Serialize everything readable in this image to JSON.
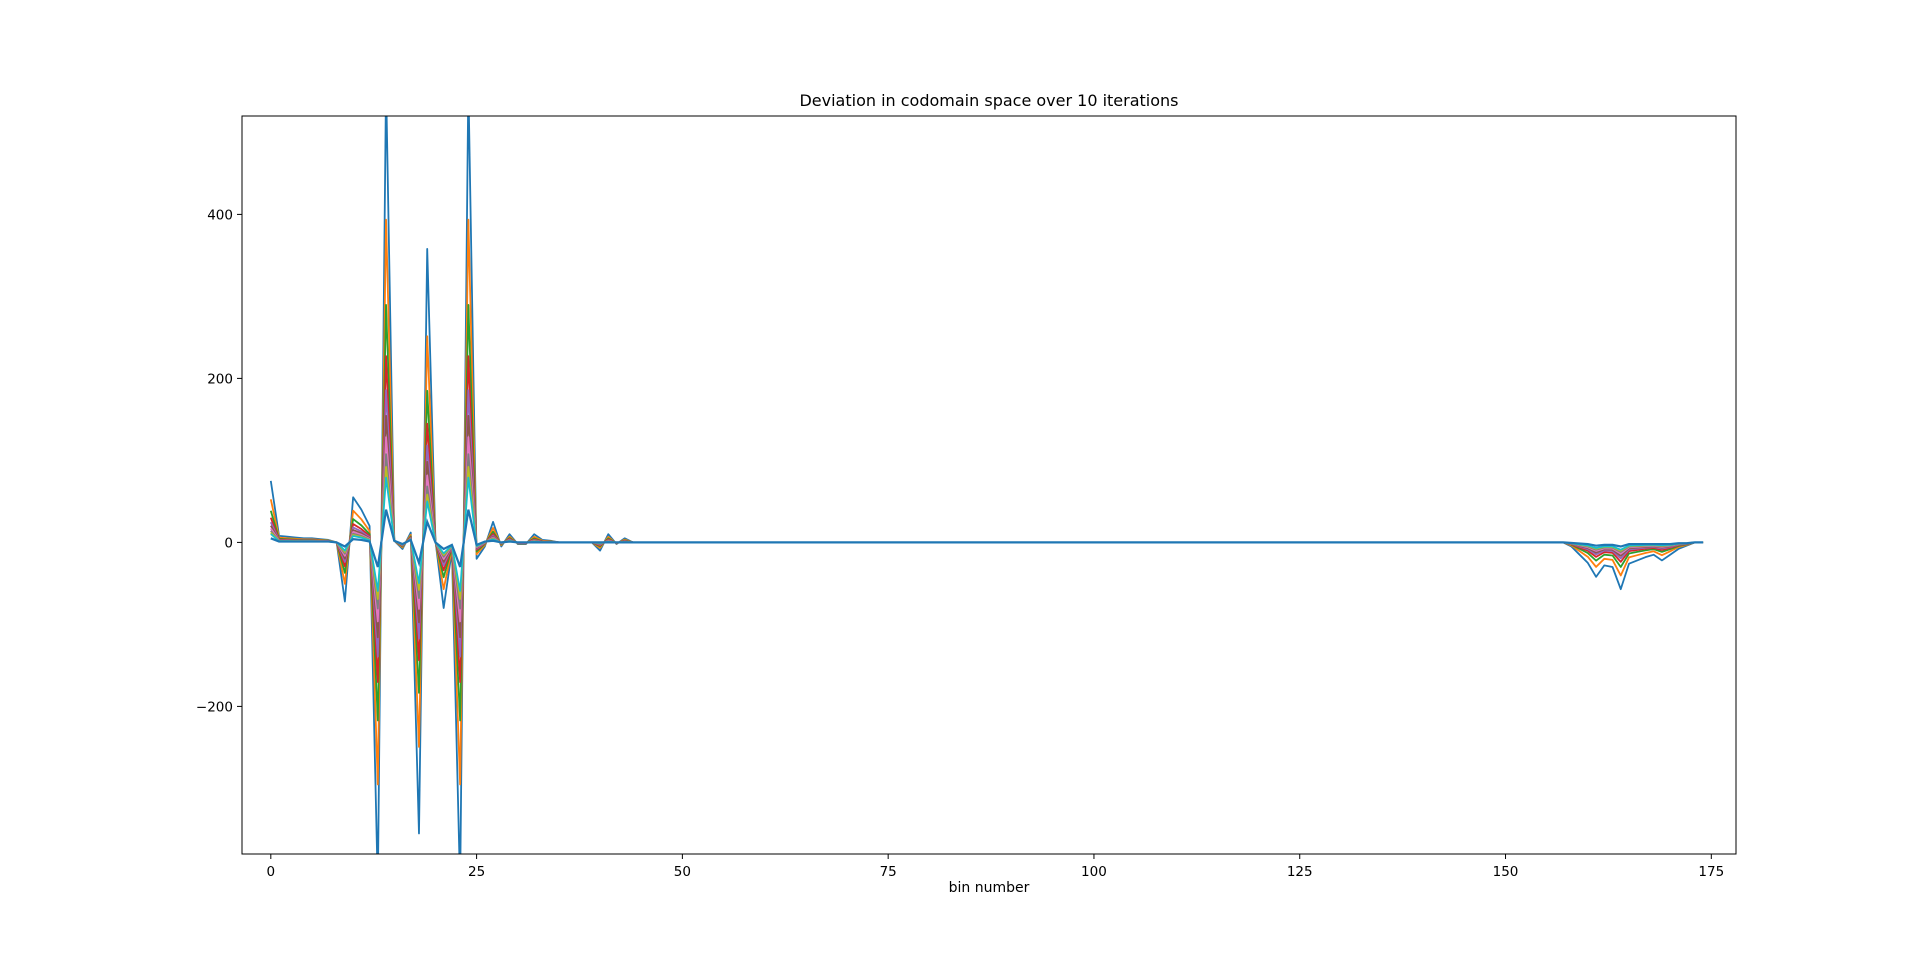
{
  "chart_data": {
    "type": "line",
    "title": "Deviation in codomain space over 10 iterations",
    "xlabel": "bin number",
    "ylabel": "",
    "xlim": [
      -3.5,
      178
    ],
    "ylim": [
      -380,
      520
    ],
    "xticks": [
      0,
      25,
      50,
      75,
      100,
      125,
      150,
      175
    ],
    "yticks": [
      -200,
      0,
      200,
      400
    ],
    "grid": false,
    "legend": "none",
    "colors": [
      "#1f77b4",
      "#ff7f0e",
      "#2ca02c",
      "#d62728",
      "#9467bd",
      "#8c564b",
      "#e377c2",
      "#7f7f7f",
      "#bcbd22",
      "#17becf"
    ],
    "iterations": [
      1.0,
      0.68,
      0.48,
      0.36,
      0.28,
      0.22,
      0.17,
      0.13,
      0.1,
      0.075
    ],
    "final_series": [
      [
        0,
        5
      ],
      [
        1,
        1
      ],
      [
        2,
        1
      ],
      [
        3,
        1
      ],
      [
        4,
        1
      ],
      [
        5,
        1
      ],
      [
        6,
        1
      ],
      [
        7,
        1
      ],
      [
        8,
        0
      ],
      [
        9,
        -5
      ],
      [
        10,
        4
      ],
      [
        11,
        3
      ],
      [
        12,
        1
      ],
      [
        13,
        -30
      ],
      [
        14,
        40
      ],
      [
        15,
        2
      ],
      [
        16,
        -2
      ],
      [
        17,
        3
      ],
      [
        18,
        -25
      ],
      [
        19,
        25
      ],
      [
        20,
        0
      ],
      [
        21,
        -8
      ],
      [
        22,
        -3
      ],
      [
        23,
        -30
      ],
      [
        24,
        40
      ],
      [
        25,
        -3
      ],
      [
        26,
        1
      ],
      [
        27,
        2
      ],
      [
        28,
        0
      ],
      [
        29,
        1
      ],
      [
        30,
        0
      ],
      [
        31,
        0
      ],
      [
        32,
        0
      ],
      [
        40,
        0
      ],
      [
        41,
        0
      ],
      [
        44,
        0
      ],
      [
        45,
        0
      ],
      [
        157,
        0
      ],
      [
        160,
        -2
      ],
      [
        161,
        -4
      ],
      [
        162,
        -3
      ],
      [
        163,
        -3
      ],
      [
        164,
        -5
      ],
      [
        165,
        -2
      ],
      [
        166,
        -2
      ],
      [
        167,
        -2
      ],
      [
        168,
        -2
      ],
      [
        169,
        -2
      ],
      [
        170,
        -2
      ],
      [
        171,
        -1
      ],
      [
        172,
        -1
      ],
      [
        173,
        0
      ],
      [
        174,
        0
      ]
    ],
    "peak_series": [
      [
        0,
        75
      ],
      [
        1,
        8
      ],
      [
        2,
        7
      ],
      [
        3,
        6
      ],
      [
        4,
        5
      ],
      [
        5,
        5
      ],
      [
        6,
        4
      ],
      [
        7,
        3
      ],
      [
        8,
        0
      ],
      [
        9,
        -72
      ],
      [
        10,
        55
      ],
      [
        11,
        40
      ],
      [
        12,
        20
      ],
      [
        13,
        -420
      ],
      [
        14,
        560
      ],
      [
        15,
        2
      ],
      [
        16,
        -8
      ],
      [
        17,
        12
      ],
      [
        18,
        -355
      ],
      [
        19,
        358
      ],
      [
        20,
        2
      ],
      [
        21,
        -80
      ],
      [
        22,
        -10
      ],
      [
        23,
        -420
      ],
      [
        24,
        560
      ],
      [
        25,
        -20
      ],
      [
        26,
        -5
      ],
      [
        27,
        25
      ],
      [
        28,
        -5
      ],
      [
        29,
        10
      ],
      [
        30,
        -2
      ],
      [
        31,
        -2
      ],
      [
        32,
        10
      ],
      [
        33,
        3
      ],
      [
        34,
        2
      ],
      [
        35,
        0
      ],
      [
        39,
        0
      ],
      [
        40,
        -10
      ],
      [
        41,
        10
      ],
      [
        42,
        -2
      ],
      [
        43,
        5
      ],
      [
        44,
        0
      ],
      [
        45,
        0
      ],
      [
        157,
        0
      ],
      [
        158,
        -5
      ],
      [
        159,
        -15
      ],
      [
        160,
        -25
      ],
      [
        161,
        -42
      ],
      [
        162,
        -28
      ],
      [
        163,
        -30
      ],
      [
        164,
        -57
      ],
      [
        165,
        -26
      ],
      [
        166,
        -22
      ],
      [
        167,
        -18
      ],
      [
        168,
        -15
      ],
      [
        169,
        -22
      ],
      [
        170,
        -15
      ],
      [
        171,
        -8
      ],
      [
        172,
        -4
      ],
      [
        173,
        0
      ],
      [
        174,
        0
      ]
    ]
  }
}
